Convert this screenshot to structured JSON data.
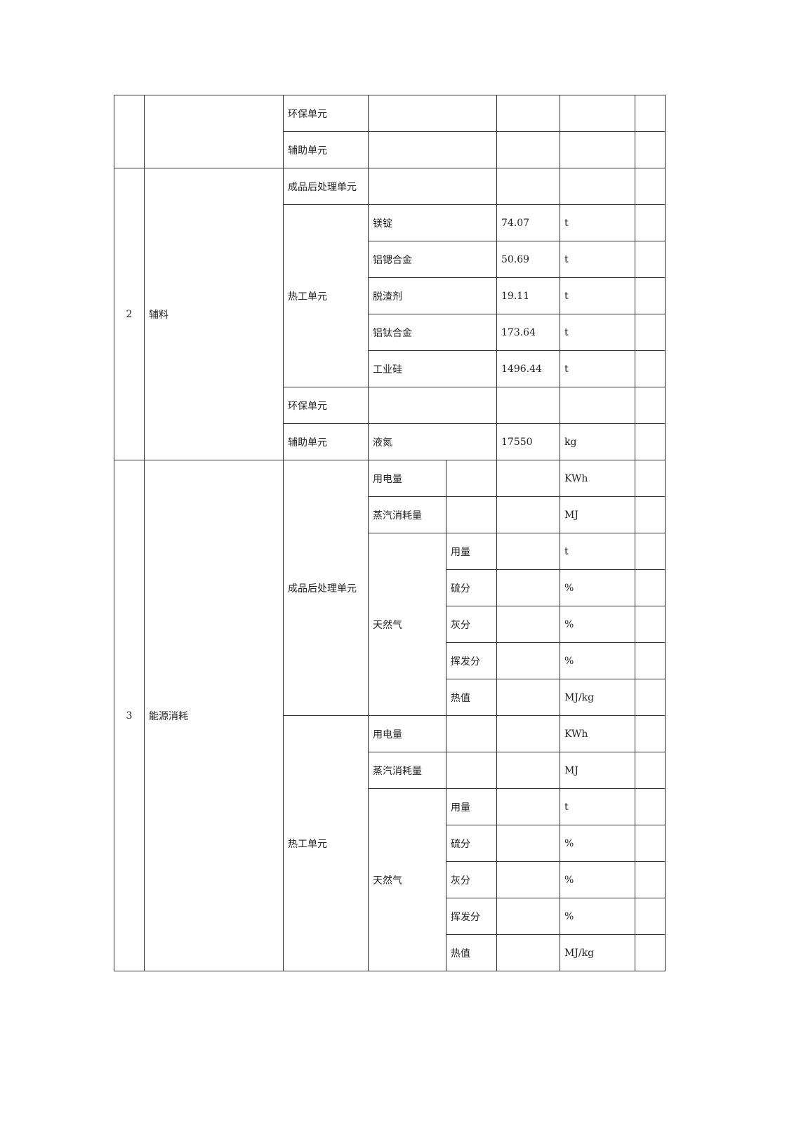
{
  "rows_top": [
    {
      "unit": "环保单元"
    },
    {
      "unit": "辅助单元"
    }
  ],
  "aux": {
    "no": "2",
    "name": "辅料",
    "post_unit": "成品后处理单元",
    "hot_unit": "热工单元",
    "items": [
      {
        "name": "镁锭",
        "value": "74.07",
        "unit": "t"
      },
      {
        "name": "铝锶合金",
        "value": "50.69",
        "unit": "t"
      },
      {
        "name": "脱渣剂",
        "value": "19.11",
        "unit": "t"
      },
      {
        "name": "铝钛合金",
        "value": "173.64",
        "unit": "t"
      },
      {
        "name": "工业硅",
        "value": "1496.44",
        "unit": "t"
      }
    ],
    "env_unit": "环保单元",
    "assist_unit": "辅助单元",
    "assist_item": {
      "name": "液氮",
      "value": "17550",
      "unit": "kg"
    }
  },
  "energy": {
    "no": "3",
    "name": "能源消耗",
    "groups": [
      {
        "unit": "成品后处理单元",
        "power": "用电量",
        "power_unit": "KWh",
        "steam": "蒸汽消耗量",
        "steam_unit": "MJ",
        "gas": "天然气",
        "gas_items": [
          {
            "name": "用量",
            "unit": "t"
          },
          {
            "name": "硫分",
            "unit": "%"
          },
          {
            "name": "灰分",
            "unit": "%"
          },
          {
            "name": "挥发分",
            "unit": "%"
          },
          {
            "name": "热值",
            "unit": "MJ/kg"
          }
        ]
      },
      {
        "unit": "热工单元",
        "power": "用电量",
        "power_unit": "KWh",
        "steam": "蒸汽消耗量",
        "steam_unit": "MJ",
        "gas": "天然气",
        "gas_items": [
          {
            "name": "用量",
            "unit": "t"
          },
          {
            "name": "硫分",
            "unit": "%"
          },
          {
            "name": "灰分",
            "unit": "%"
          },
          {
            "name": "挥发分",
            "unit": "%"
          },
          {
            "name": "热值",
            "unit": "MJ/kg"
          }
        ]
      }
    ]
  }
}
